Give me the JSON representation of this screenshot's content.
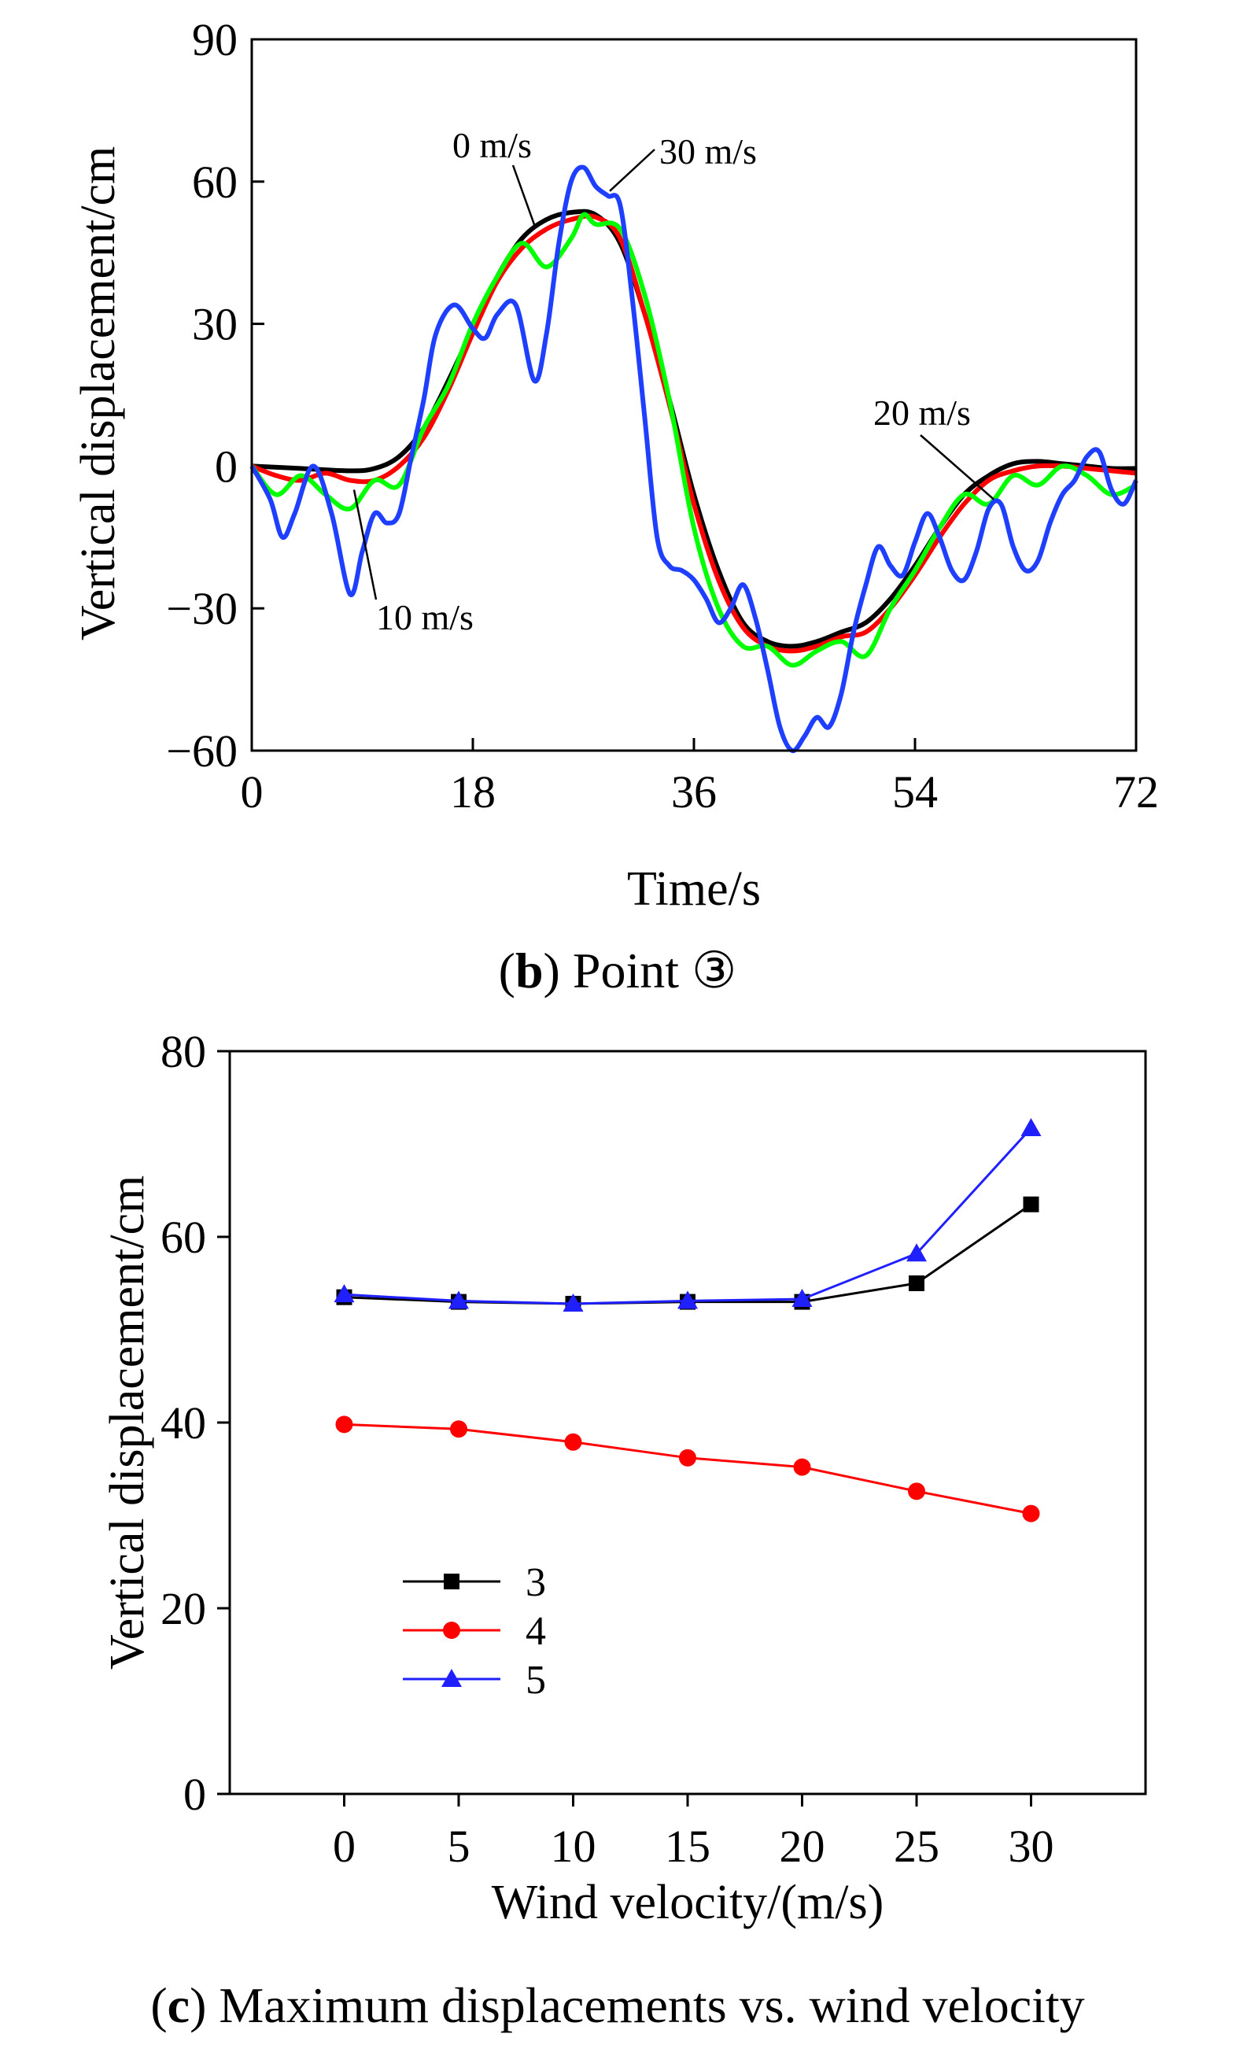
{
  "colors": {
    "black": "#000000",
    "red": "#ff0000",
    "green": "#00ff00",
    "blue": "#1f3fff",
    "blue_marker": "#2020ff"
  },
  "panel_b": {
    "caption_letter": "b",
    "caption_text": "Point ③"
  },
  "panel_c": {
    "caption_letter": "c",
    "caption_text": "Maximum displacements vs. wind velocity"
  },
  "chart_data": [
    {
      "type": "line",
      "xlabel": "Time/s",
      "ylabel": "Vertical displacement/cm",
      "xlim": [
        0,
        72
      ],
      "ylim": [
        -60,
        90
      ],
      "xticks": [
        0,
        18,
        36,
        54,
        72
      ],
      "yticks": [
        -60,
        -30,
        0,
        30,
        60,
        90
      ],
      "ytick_labels": [
        "−60",
        "−30",
        "0",
        "30",
        "60",
        "90"
      ],
      "grid": false,
      "annotations": [
        {
          "text": "0 m/s",
          "x": 24.5,
          "y": 51
        },
        {
          "text": "30 m/s",
          "x": 30.5,
          "y": 58
        },
        {
          "text": "20 m/s",
          "x": 60,
          "y": -7
        },
        {
          "text": "10 m/s",
          "x": 8.5,
          "y": -4
        }
      ],
      "series": [
        {
          "color_key": "black",
          "x": [
            0,
            4,
            8,
            10,
            12,
            14,
            16,
            18,
            20,
            22,
            24,
            26,
            28,
            30,
            32,
            34,
            36,
            38,
            40,
            42,
            44,
            46,
            48,
            50,
            52,
            54,
            56,
            58,
            60,
            62,
            64,
            66,
            68,
            70,
            72
          ],
          "y": [
            0,
            -0.5,
            -1,
            -0.5,
            2,
            8,
            18,
            29,
            40,
            48,
            52,
            53.5,
            53,
            47,
            32,
            14,
            -6,
            -22,
            -33,
            -37,
            -38,
            -37,
            -35,
            -33,
            -28,
            -21,
            -13,
            -6,
            -2,
            0.5,
            1,
            0.5,
            0,
            -0.5,
            -0.5
          ]
        },
        {
          "color_key": "red",
          "x": [
            0,
            2,
            4,
            6,
            8,
            10,
            12,
            14,
            16,
            18,
            20,
            22,
            24,
            26,
            28,
            30,
            32,
            34,
            36,
            38,
            40,
            42,
            44,
            46,
            48,
            50,
            52,
            54,
            56,
            58,
            60,
            62,
            64,
            66,
            68,
            70,
            72
          ],
          "y": [
            0,
            -2,
            -3,
            -1.5,
            -3,
            -3,
            0,
            6,
            16,
            28,
            39,
            46,
            50,
            52,
            52.5,
            48,
            32,
            13,
            -8,
            -24,
            -34,
            -38,
            -39,
            -38,
            -36,
            -35,
            -30,
            -23,
            -15,
            -8,
            -3,
            -1,
            0,
            0,
            -0.5,
            -1,
            -1.5
          ]
        },
        {
          "color_key": "green",
          "x": [
            0,
            2,
            4,
            6,
            8,
            10,
            12,
            14,
            16,
            18,
            20,
            22,
            24,
            26,
            27,
            28,
            30,
            32,
            34,
            36,
            38,
            40,
            42,
            44,
            46,
            48,
            50,
            52,
            54,
            56,
            58,
            60,
            62,
            64,
            66,
            68,
            70,
            72
          ],
          "y": [
            0,
            -6,
            -2,
            -6,
            -9,
            -3,
            -4,
            8,
            17,
            30,
            40,
            47,
            42,
            48,
            53,
            51,
            50,
            36,
            14,
            -13,
            -30,
            -38,
            -38,
            -42,
            -39,
            -37,
            -40,
            -30,
            -22,
            -13,
            -6,
            -8,
            -2,
            -4,
            0,
            -2,
            -6,
            -4
          ]
        },
        {
          "color_key": "blue",
          "x": [
            0,
            1.5,
            2.5,
            3.5,
            5,
            6.5,
            8,
            9,
            10,
            11,
            12,
            13,
            14,
            15,
            16.5,
            18,
            19,
            20,
            21.5,
            23,
            24,
            25,
            26,
            27,
            28,
            29,
            30,
            31,
            32,
            33,
            34,
            35,
            36,
            37,
            38,
            39,
            40,
            41,
            42,
            43,
            44,
            45,
            46,
            47,
            48,
            49,
            50,
            51,
            52,
            53,
            54,
            55,
            56,
            57,
            58,
            59,
            60,
            61,
            62,
            63,
            64,
            65,
            66,
            67,
            68,
            69,
            70,
            71,
            72
          ],
          "y": [
            0,
            -7,
            -15,
            -10,
            0,
            -10,
            -27,
            -18,
            -10,
            -12,
            -10,
            2,
            14,
            28,
            34,
            29,
            27,
            32,
            34,
            18,
            28,
            47,
            60,
            63,
            59,
            57,
            55,
            35,
            10,
            -15,
            -21,
            -22,
            -24,
            -28,
            -33,
            -30,
            -25,
            -32,
            -43,
            -55,
            -60,
            -57,
            -53,
            -55,
            -48,
            -35,
            -25,
            -17,
            -21,
            -23,
            -16,
            -10,
            -15,
            -22,
            -24,
            -18,
            -9,
            -8,
            -17,
            -22,
            -20,
            -12,
            -6,
            -3,
            2,
            3,
            -5,
            -8,
            -3
          ]
        }
      ]
    },
    {
      "type": "line",
      "xlabel": "Wind velocity/(m/s)",
      "ylabel": "Vertical displacement/cm",
      "xlim": [
        -5,
        35
      ],
      "ylim": [
        0,
        80
      ],
      "xticks": [
        0,
        5,
        10,
        15,
        20,
        25,
        30
      ],
      "yticks": [
        0,
        20,
        40,
        60,
        80
      ],
      "grid": false,
      "legend_position": "bottom-left",
      "categories": [
        0,
        5,
        10,
        15,
        20,
        25,
        30
      ],
      "series": [
        {
          "name": "3",
          "marker": "square",
          "color_key": "black",
          "values": [
            53.5,
            53,
            52.8,
            53,
            53,
            55,
            63.5
          ]
        },
        {
          "name": "4",
          "marker": "circle",
          "color_key": "red",
          "values": [
            39.8,
            39.3,
            37.9,
            36.2,
            35.2,
            32.6,
            30.2
          ]
        },
        {
          "name": "5",
          "marker": "triangle",
          "color_key": "blue_marker",
          "values": [
            53.8,
            53.1,
            52.8,
            53.1,
            53.3,
            58.2,
            71.7
          ]
        }
      ]
    }
  ]
}
